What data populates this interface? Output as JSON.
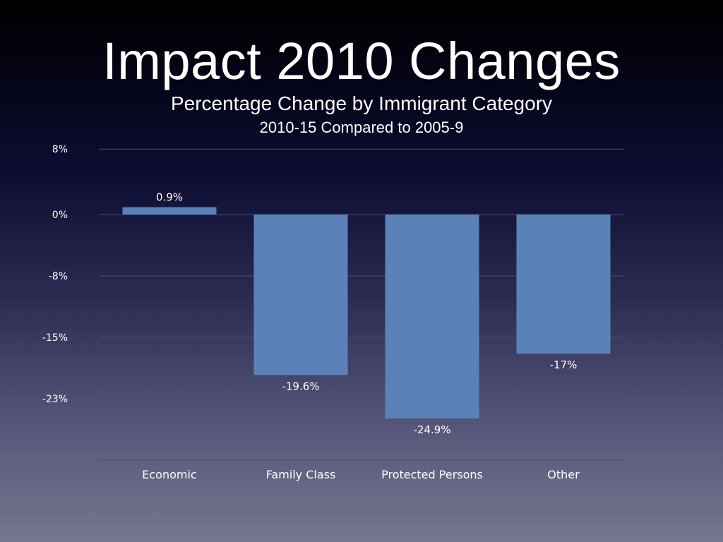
{
  "slide": {
    "title": "Impact 2010 Changes",
    "subtitle": "Percentage Change by Immigrant Category",
    "subtitle2": "2010-15 Compared to 2005-9"
  },
  "colors": {
    "bar": "#5b82b8",
    "gridline": "#4c4c66",
    "text": "#ffffff"
  },
  "chart_data": {
    "type": "bar",
    "categories": [
      "Economic",
      "Family Class",
      "Protected Persons",
      "Other"
    ],
    "values": [
      0.9,
      -19.6,
      -24.9,
      -17
    ],
    "data_labels": [
      "0.9%",
      "-19.6%",
      "-24.9%",
      "-17%"
    ],
    "y_ticks": [
      8,
      0,
      -7.5,
      -15,
      -22.5
    ],
    "y_tick_labels": [
      "8%",
      "0%",
      "-8%",
      "-15%",
      "-23%"
    ],
    "ylim": [
      -30,
      7.5
    ],
    "grid": true,
    "legend": "none"
  }
}
